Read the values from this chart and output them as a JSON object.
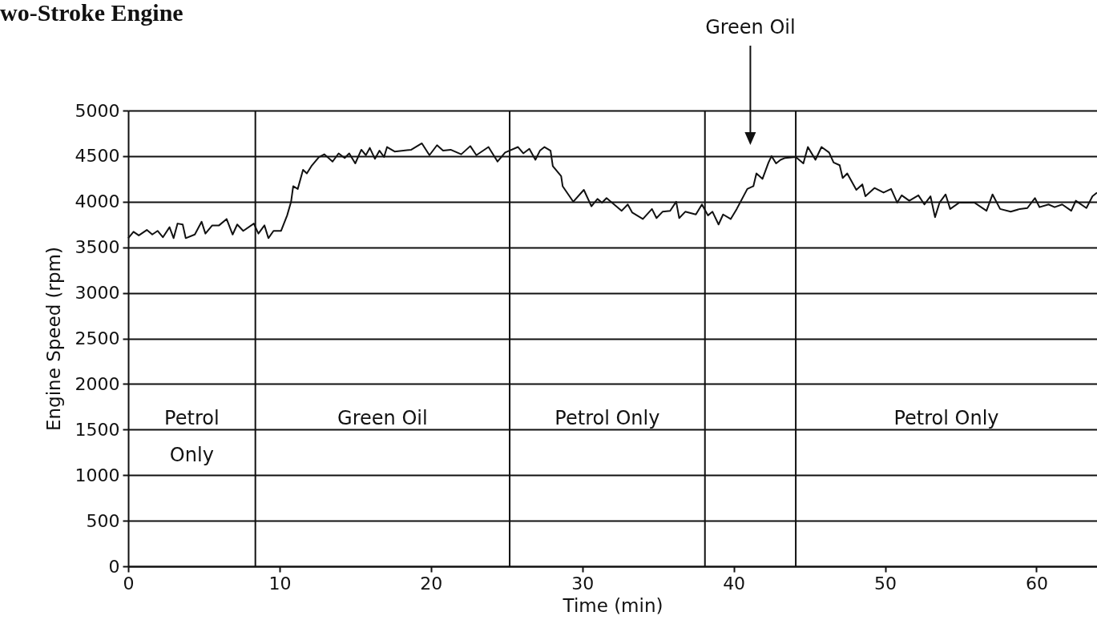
{
  "chart_data": {
    "type": "line",
    "title": "wo-Stroke Engine",
    "xlabel": "Time (min)",
    "ylabel": "Engine Speed (rpm)",
    "x": [
      0,
      0.35,
      0.7,
      1.23,
      1.59,
      1.94,
      2.29,
      2.73,
      3.0,
      3.26,
      3.6,
      3.8,
      4.4,
      4.85,
      5.1,
      5.55,
      6.0,
      6.5,
      6.9,
      7.2,
      7.6,
      8.3,
      8.6,
      9.0,
      9.26,
      9.6,
      10.1,
      10.5,
      10.76,
      10.9,
      11.2,
      11.55,
      11.8,
      12.1,
      12.6,
      12.96,
      13.5,
      13.9,
      14.3,
      14.6,
      15.0,
      15.4,
      15.7,
      15.96,
      16.3,
      16.6,
      16.9,
      17.1,
      17.6,
      18.7,
      19.4,
      19.9,
      20.4,
      20.8,
      21.3,
      22.0,
      22.6,
      23.0,
      23.8,
      24.4,
      24.9,
      25.75,
      26.1,
      26.5,
      26.9,
      27.2,
      27.5,
      27.9,
      28.05,
      28.6,
      28.7,
      29.4,
      30.1,
      30.6,
      31.0,
      31.3,
      31.6,
      32.1,
      32.6,
      33.0,
      33.3,
      34.0,
      34.6,
      34.9,
      35.3,
      35.8,
      36.2,
      36.4,
      36.8,
      37.5,
      37.9,
      38.3,
      38.6,
      39.0,
      39.3,
      39.8,
      40.2,
      40.9,
      41.3,
      41.5,
      41.9,
      42.3,
      42.5,
      42.8,
      43.1,
      43.4,
      44.1,
      44.6,
      44.9,
      45.4,
      45.8,
      46.3,
      46.6,
      47.0,
      47.2,
      47.5,
      48.1,
      48.5,
      48.7,
      49.3,
      49.9,
      50.4,
      50.8,
      51.1,
      51.6,
      52.2,
      52.6,
      53.0,
      53.3,
      53.6,
      54.0,
      54.3,
      54.9,
      55.9,
      56.7,
      57.1,
      57.6,
      58.3,
      58.9,
      59.4,
      59.9,
      60.2,
      60.8,
      61.2,
      61.7,
      62.3,
      62.6,
      63.3,
      63.7,
      64.0
    ],
    "series": [
      {
        "color": "#111111",
        "values": [
          3600,
          3670,
          3630,
          3690,
          3640,
          3680,
          3610,
          3720,
          3600,
          3760,
          3750,
          3600,
          3640,
          3780,
          3650,
          3740,
          3740,
          3810,
          3640,
          3750,
          3680,
          3760,
          3650,
          3740,
          3600,
          3680,
          3680,
          3850,
          4000,
          4170,
          4140,
          4350,
          4310,
          4390,
          4490,
          4520,
          4440,
          4530,
          4480,
          4530,
          4420,
          4570,
          4510,
          4590,
          4470,
          4560,
          4490,
          4600,
          4550,
          4570,
          4640,
          4510,
          4620,
          4560,
          4570,
          4520,
          4610,
          4510,
          4600,
          4440,
          4540,
          4600,
          4530,
          4580,
          4460,
          4560,
          4600,
          4560,
          4390,
          4280,
          4170,
          4000,
          4130,
          3950,
          4030,
          3990,
          4040,
          3970,
          3900,
          3970,
          3880,
          3810,
          3920,
          3820,
          3890,
          3900,
          4000,
          3820,
          3890,
          3860,
          3970,
          3850,
          3890,
          3750,
          3860,
          3810,
          3920,
          4140,
          4170,
          4310,
          4250,
          4430,
          4500,
          4420,
          4460,
          4480,
          4490,
          4420,
          4600,
          4460,
          4600,
          4540,
          4430,
          4400,
          4260,
          4310,
          4130,
          4190,
          4060,
          4150,
          4100,
          4140,
          3990,
          4070,
          4010,
          4070,
          3970,
          4060,
          3830,
          3990,
          4080,
          3920,
          3990,
          3990,
          3900,
          4080,
          3920,
          3890,
          3920,
          3930,
          4040,
          3940,
          3970,
          3940,
          3970,
          3900,
          4010,
          3930,
          4060,
          4100
        ]
      }
    ],
    "xlim": [
      0,
      64
    ],
    "xticks": [
      0,
      10,
      20,
      30,
      40,
      50,
      60
    ],
    "ylim": [
      0,
      5000
    ],
    "yticks": [
      0,
      500,
      1000,
      1500,
      2000,
      2500,
      3000,
      3500,
      4000,
      4500,
      5000
    ],
    "grid": "y",
    "marker": "none",
    "line_style": "solid",
    "ref_lines": [
      {
        "axis": "x",
        "value": 8.4,
        "color": "#111111"
      },
      {
        "axis": "x",
        "value": 25.2,
        "color": "#111111"
      },
      {
        "axis": "x",
        "value": 38.1,
        "color": "#111111"
      },
      {
        "axis": "x",
        "value": 44.1,
        "color": "#111111"
      }
    ],
    "annotations": [
      "Petrol Only",
      "Green Oil",
      "Petrol Only",
      "Green Oil",
      "Petrol Only"
    ]
  }
}
